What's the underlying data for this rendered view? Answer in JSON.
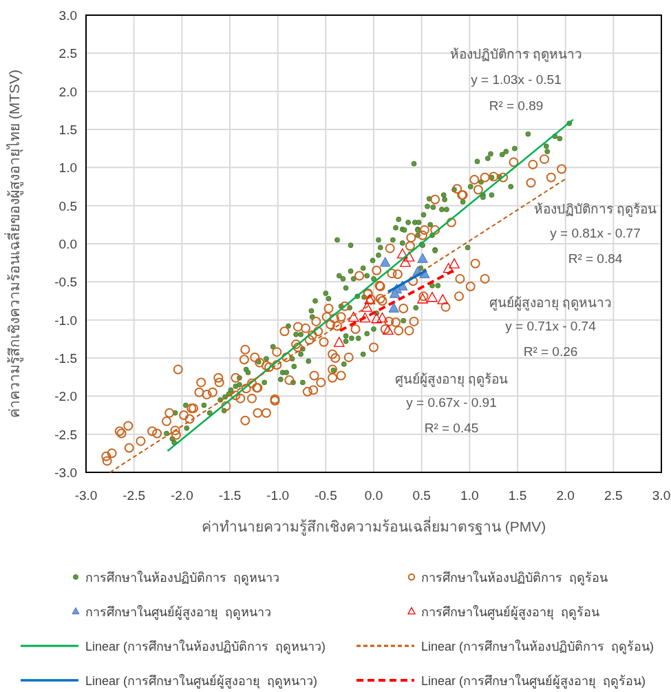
{
  "chart_data": {
    "type": "scatter",
    "xlabel": "ค่าทำนายความรู้สึกเชิงความร้อนเฉลี่ยมาตรฐาน (PMV)",
    "ylabel": "ค่าความรู้สึกเชิงความร้อนเฉลี่ยของผู้สูงอายุไทย (MTSV)",
    "xlim": [
      -3,
      3
    ],
    "ylim": [
      -3,
      3
    ],
    "xticks": [
      {
        "value": -3,
        "label": "-3.0"
      },
      {
        "value": -2.5,
        "label": "-2.5"
      },
      {
        "value": -2,
        "label": "-2.0"
      },
      {
        "value": -1.5,
        "label": "-1.5"
      },
      {
        "value": -1,
        "label": "-1.0"
      },
      {
        "value": -0.5,
        "label": "-0.5"
      },
      {
        "value": 0,
        "label": "0.0"
      },
      {
        "value": 0.5,
        "label": "0.5"
      },
      {
        "value": 1,
        "label": "1.0"
      },
      {
        "value": 1.5,
        "label": "1.5"
      },
      {
        "value": 2,
        "label": "2.0"
      },
      {
        "value": 2.5,
        "label": "2.5"
      },
      {
        "value": 3,
        "label": "3.0"
      }
    ],
    "yticks": [
      {
        "value": -3,
        "label": "-3.0"
      },
      {
        "value": -2.5,
        "label": "-2.5"
      },
      {
        "value": -2,
        "label": "-2.0"
      },
      {
        "value": -1.5,
        "label": "-1.5"
      },
      {
        "value": -1,
        "label": "-1.0"
      },
      {
        "value": -0.5,
        "label": "-0.5"
      },
      {
        "value": 0,
        "label": "0.0"
      },
      {
        "value": 0.5,
        "label": "0.5"
      },
      {
        "value": 1,
        "label": "1.0"
      },
      {
        "value": 1.5,
        "label": "1.5"
      },
      {
        "value": 2,
        "label": "2.0"
      },
      {
        "value": 2.5,
        "label": "2.5"
      },
      {
        "value": 3,
        "label": "3.0"
      }
    ],
    "grid": true,
    "legend": "bottom",
    "annotations": [
      "ห้องปฏิบัติการ ฤดูหนาว",
      "y = 1.03x - 0.51",
      "R² = 0.89",
      "ห้องปฏิบัติการ ฤดูร้อน",
      "y = 0.81x - 0.77",
      "R² = 0.84",
      "ศูนย์ผู้สูงอายุ ฤดูหนาว",
      "y = 0.71x - 0.74",
      "R² = 0.26",
      "ศูนย์ผู้สูงอายุ ฤดูร้อน",
      "y = 0.67x - 0.91",
      "R² = 0.45"
    ],
    "series": [
      {
        "name": "การศึกษาในห้องปฏิบัติการ  ฤดูหนาว",
        "type": "scatter",
        "marker": "circle",
        "color": "#5f9a3c",
        "x": [
          2.04,
          1.61,
          1.89,
          1.94,
          1.8,
          1.81,
          1.47,
          1.38,
          1.34,
          1.22,
          1.19,
          1.08,
          0.42,
          1.23,
          1.31,
          1.12,
          1.01,
          1.43,
          1.14,
          1.14,
          1.23,
          0.84,
          0.73,
          0.74,
          0.58,
          0.93,
          0.56,
          0.62,
          0.71,
          0.76,
          0.52,
          0.36,
          0.43,
          0.47,
          0.59,
          0.3,
          0.46,
          0.46,
          0.61,
          0.3,
          0.5,
          0.64,
          0.98,
          0.49,
          0.61,
          0.67,
          0.44,
          0.26,
          0.23,
          0.32,
          0.46,
          -0.38,
          -0.24,
          0.05,
          0.2,
          0.07,
          0.51,
          0.64,
          -0.01,
          0.05,
          -0.11,
          -0.24,
          -0.36,
          -0.32,
          -0.21,
          -0.07,
          0.0,
          -0.29,
          -0.5,
          -0.47,
          -0.61,
          -0.17,
          -0.1,
          -0.34,
          -0.25,
          -0.65,
          -0.64,
          0.03,
          0.31,
          0.0,
          -0.07,
          -0.29,
          -0.23,
          -0.16,
          -0.89,
          -0.81,
          -0.76,
          -0.29,
          -0.11,
          -0.31,
          -0.42,
          -1.05,
          -0.74,
          -0.76,
          -1.12,
          -0.85,
          -1.2,
          -0.68,
          -0.83,
          -1.33,
          -1.31,
          -0.95,
          -0.91,
          -0.97,
          -0.84,
          -0.74,
          -1.14,
          -1.4,
          -1.44,
          -1.49,
          -1.51,
          -1.55,
          -1.4,
          -1.6,
          -1.56,
          -1.71,
          -1.77,
          -1.96,
          -1.95,
          -2.07,
          -2.16,
          -2.1,
          -2.08
        ],
        "values": [
          1.58,
          1.44,
          1.41,
          1.38,
          1.28,
          1.21,
          1.25,
          1.21,
          1.17,
          1.18,
          1.12,
          1.08,
          1.05,
          0.87,
          0.88,
          0.81,
          0.75,
          0.75,
          0.64,
          0.61,
          0.64,
          0.71,
          0.64,
          0.58,
          0.59,
          0.55,
          0.49,
          0.48,
          0.45,
          0.45,
          0.38,
          0.28,
          0.28,
          0.28,
          0.25,
          0.19,
          0.19,
          0.11,
          0.11,
          0.01,
          -0.01,
          -0.08,
          -0.05,
          -0.32,
          -0.55,
          -0.55,
          -0.84,
          0.32,
          0.21,
          0.18,
          0.18,
          0.05,
          -0.02,
          0.05,
          0.05,
          -0.05,
          -0.02,
          -0.09,
          -0.22,
          -0.15,
          -0.32,
          -0.36,
          -0.42,
          -0.46,
          -0.46,
          -0.42,
          -0.46,
          -0.58,
          -0.65,
          -0.72,
          -0.75,
          -0.69,
          -0.7,
          -0.82,
          -0.84,
          -0.88,
          -0.96,
          -0.91,
          -1.01,
          -1.12,
          -1.18,
          -1.21,
          -1.24,
          -1.24,
          -1.08,
          -1.19,
          -1.19,
          -1.28,
          -1.45,
          -1.58,
          -1.66,
          -1.35,
          -1.38,
          -1.45,
          -1.51,
          -1.51,
          -1.55,
          -1.54,
          -1.61,
          -1.65,
          -1.69,
          -1.69,
          -1.69,
          -1.78,
          -1.82,
          -1.82,
          -1.82,
          -1.76,
          -1.87,
          -1.92,
          -1.97,
          -2.01,
          -1.85,
          -2.05,
          -2.19,
          -2.22,
          -2.12,
          -2.12,
          -2.42,
          -2.22,
          -2.49,
          -2.56,
          -2.61
        ]
      },
      {
        "name": "การศึกษาในห้องปฏิบัติการ  ฤดูร้อน",
        "type": "scatter",
        "marker": "circle",
        "color": "#c8641e",
        "x": [
          -2.79,
          -2.78,
          -2.73,
          -2.65,
          -2.63,
          -2.56,
          -2.55,
          -2.43,
          -2.31,
          -2.26,
          -2.16,
          -2.13,
          -2.07,
          -2.06,
          -2.04,
          -1.98,
          -1.92,
          -1.9,
          -1.88,
          -1.8,
          -1.82,
          -1.74,
          -1.68,
          -1.62,
          -1.61,
          -1.54,
          -1.44,
          -1.44,
          -1.39,
          -1.34,
          -1.35,
          -1.24,
          -1.33,
          -1.27,
          -1.34,
          -1.21,
          -1.12,
          -1.03,
          -1.21,
          -1.01,
          -1.01,
          -1.12,
          -0.93,
          -1.19,
          0.03,
          -0.15,
          -0.06,
          0.07,
          0.09,
          -0.47,
          -0.49,
          -0.41,
          -0.34,
          -0.3,
          -0.6,
          -0.79,
          -0.71,
          -0.64,
          -0.58,
          -0.67,
          -0.45,
          -0.38,
          -0.19,
          -0.52,
          0.0,
          -0.81,
          -0.79,
          -1.09,
          -0.91,
          -1.27,
          -1.22,
          -0.88,
          -0.62,
          -0.55,
          -0.43,
          -0.4,
          -0.26,
          -0.43,
          -0.34,
          -0.43,
          -0.69,
          -0.63,
          -1.03,
          0.64,
          0.93,
          0.81,
          0.53,
          0.64,
          0.51,
          0.39,
          0.38,
          0.17,
          0.19,
          0.25,
          0.41,
          0.9,
          1.01,
          0.89,
          0.75,
          0.52,
          0.31,
          0.06,
          -0.06,
          0.07,
          -0.03,
          0.42,
          0.23,
          0.16,
          0.26,
          0.37,
          0.12,
          1.96,
          1.85,
          1.78,
          1.66,
          1.64,
          1.46,
          1.35,
          1.25,
          1.16,
          1.05,
          1.09,
          0.87,
          0.92,
          1.06,
          1.16
        ],
        "values": [
          -2.79,
          -2.85,
          -2.75,
          -2.46,
          -2.49,
          -2.39,
          -2.68,
          -2.59,
          -2.46,
          -2.49,
          -2.33,
          -2.22,
          -2.45,
          -2.51,
          -1.65,
          -2.25,
          -2.3,
          -2.16,
          -2.16,
          -1.82,
          -1.95,
          -1.98,
          -1.95,
          -1.76,
          -1.82,
          -2.13,
          -1.76,
          -1.99,
          -2.03,
          -1.39,
          -1.52,
          -1.49,
          -1.9,
          -2.03,
          -2.32,
          -2.22,
          -2.22,
          -2.06,
          -1.89,
          -1.42,
          -1.59,
          -1.6,
          -1.15,
          -1.56,
          -0.35,
          -0.42,
          -0.65,
          -0.56,
          -0.75,
          -0.85,
          -0.96,
          -0.98,
          -0.96,
          -0.82,
          -1.02,
          -1.09,
          -1.11,
          -1.2,
          -1.15,
          -1.26,
          -1.06,
          -1.08,
          -1.12,
          -1.29,
          -1.36,
          -1.32,
          -1.36,
          -1.62,
          -1.49,
          -1.83,
          -1.89,
          -1.79,
          -1.73,
          -1.82,
          -1.45,
          -1.5,
          -1.49,
          -1.65,
          -1.73,
          -1.76,
          -1.94,
          -1.92,
          -2.04,
          0.58,
          0.64,
          0.28,
          0.18,
          0.18,
          0.11,
          0.08,
          -0.03,
          -0.06,
          -0.39,
          -0.4,
          -0.49,
          -0.46,
          -0.56,
          -0.69,
          -0.83,
          -0.69,
          -0.85,
          -0.55,
          -0.66,
          -0.72,
          -0.73,
          -1.02,
          -1.03,
          -1.02,
          -1.14,
          -1.14,
          -1.12,
          0.98,
          0.87,
          1.11,
          1.04,
          0.8,
          1.07,
          0.87,
          0.88,
          0.87,
          0.84,
          0.71,
          0.72,
          0.64,
          -0.26,
          -0.46
        ]
      },
      {
        "name": "การศึกษาในศูนย์ผู้สูงอายุ  ฤดูหนาว",
        "type": "scatter",
        "marker": "triangle",
        "color": "#6f9bd8",
        "x": [
          0.12,
          0.51,
          0.53,
          0.46,
          0.3,
          0.24,
          0.22,
          0.21
        ],
        "values": [
          -0.25,
          -0.2,
          -0.4,
          -0.37,
          -0.56,
          -0.6,
          -0.66,
          -0.85
        ]
      },
      {
        "name": "การศึกษาในศูนย์ผู้สูงอายุ  ฤดูร้อน",
        "type": "scatter",
        "marker": "triangle",
        "color": "#ff0000",
        "x": [
          0.3,
          0.37,
          0.33,
          0.78,
          0.84,
          0.51,
          0.61,
          0.72,
          -0.04,
          -0.07,
          -0.21,
          -0.09,
          0.03,
          0.09,
          0.15,
          -0.36
        ],
        "values": [
          -0.14,
          -0.18,
          -0.25,
          -0.33,
          -0.27,
          -0.73,
          -0.71,
          -0.74,
          -0.74,
          -0.84,
          -0.97,
          -0.98,
          -0.99,
          -0.98,
          -1.14,
          -1.3
        ]
      },
      {
        "name": "Linear (การศึกษาในห้องปฏิบัติการ  ฤดูหนาว)",
        "type": "line",
        "marker": "none",
        "line_style": "solid",
        "color": "#00b050",
        "x": [
          -2.15,
          2.08
        ],
        "values": [
          -2.72,
          1.63
        ]
      },
      {
        "name": "Linear (การศึกษาในห้องปฏิบัติการ  ฤดูร้อน)",
        "type": "line",
        "marker": "none",
        "line_style": "dashed",
        "color": "#c55a11",
        "x": [
          -2.75,
          2.0
        ],
        "values": [
          -3.0,
          0.85
        ]
      },
      {
        "name": "Linear (การศึกษาในศูนย์ผู้สูงอายุ  ฤดูหนาว)",
        "type": "line",
        "marker": "none",
        "line_style": "solid",
        "color": "#0070c0",
        "x": [
          0.15,
          0.55
        ],
        "values": [
          -0.63,
          -0.35
        ]
      },
      {
        "name": "Linear (การศึกษาในศูนย์ผู้สูงอายุ  ฤดูร้อน)",
        "type": "line",
        "marker": "none",
        "line_style": "dashed",
        "color": "#ff0000",
        "x": [
          -0.35,
          0.85
        ],
        "values": [
          -1.14,
          -0.34
        ]
      }
    ]
  }
}
